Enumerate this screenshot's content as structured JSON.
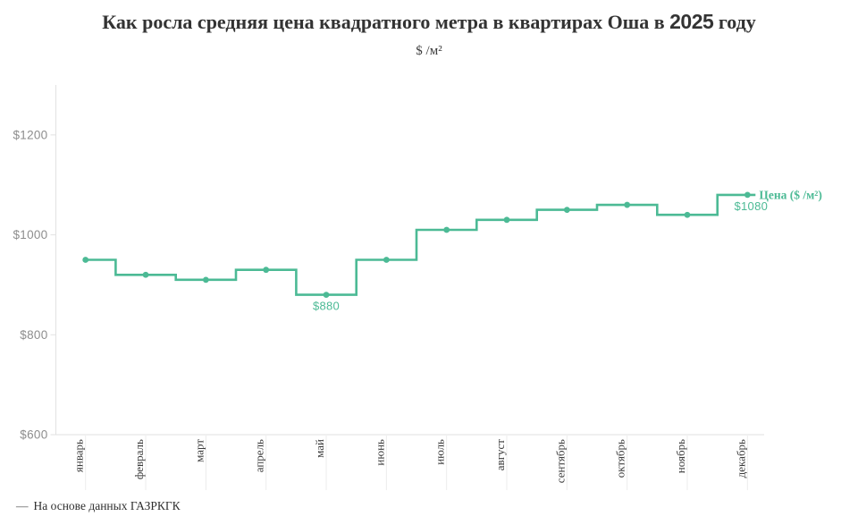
{
  "header": {
    "title_prefix": "Как росла средняя цена квадратного метра в квартирах Оша в ",
    "title_year": "2025",
    "title_suffix": " году",
    "subtitle": "$ /м²"
  },
  "chart_data": {
    "type": "line",
    "step_style": "mid",
    "title": "Как росла средняя цена квадратного метра в квартирах Оша в 2025 году",
    "subtitle": "$ /м²",
    "categories": [
      "январь",
      "февраль",
      "март",
      "апрель",
      "май",
      "июнь",
      "июль",
      "август",
      "сентябрь",
      "октябрь",
      "ноябрь",
      "декабрь"
    ],
    "series": [
      {
        "name": "Цена ($ /м²)",
        "values": [
          950,
          920,
          910,
          930,
          880,
          950,
          1010,
          1030,
          1050,
          1060,
          1040,
          1080
        ]
      }
    ],
    "y_ticks": [
      600,
      800,
      1000,
      1200
    ],
    "y_tick_labels": [
      "$600",
      "$800",
      "$1000",
      "$1200"
    ],
    "ylim": [
      600,
      1300
    ],
    "grid": false,
    "legend_position": "end-of-line",
    "line_label": "Цена ($ /м²)",
    "annotations": [
      {
        "index": 4,
        "text": "$880",
        "position": "below"
      },
      {
        "index": 11,
        "text": "$1080",
        "position": "below-right"
      }
    ],
    "colors": {
      "line": "#4cba95",
      "annotation": "#4cba95",
      "axis_line": "#e2e2e2",
      "x_tick_line": "#ececec",
      "y_tick_label": "#8d8d8d",
      "x_tick_label": "#3c3c3c"
    }
  },
  "footer": {
    "marker": "—",
    "text": "На основе данных ГАЗРКГК"
  }
}
